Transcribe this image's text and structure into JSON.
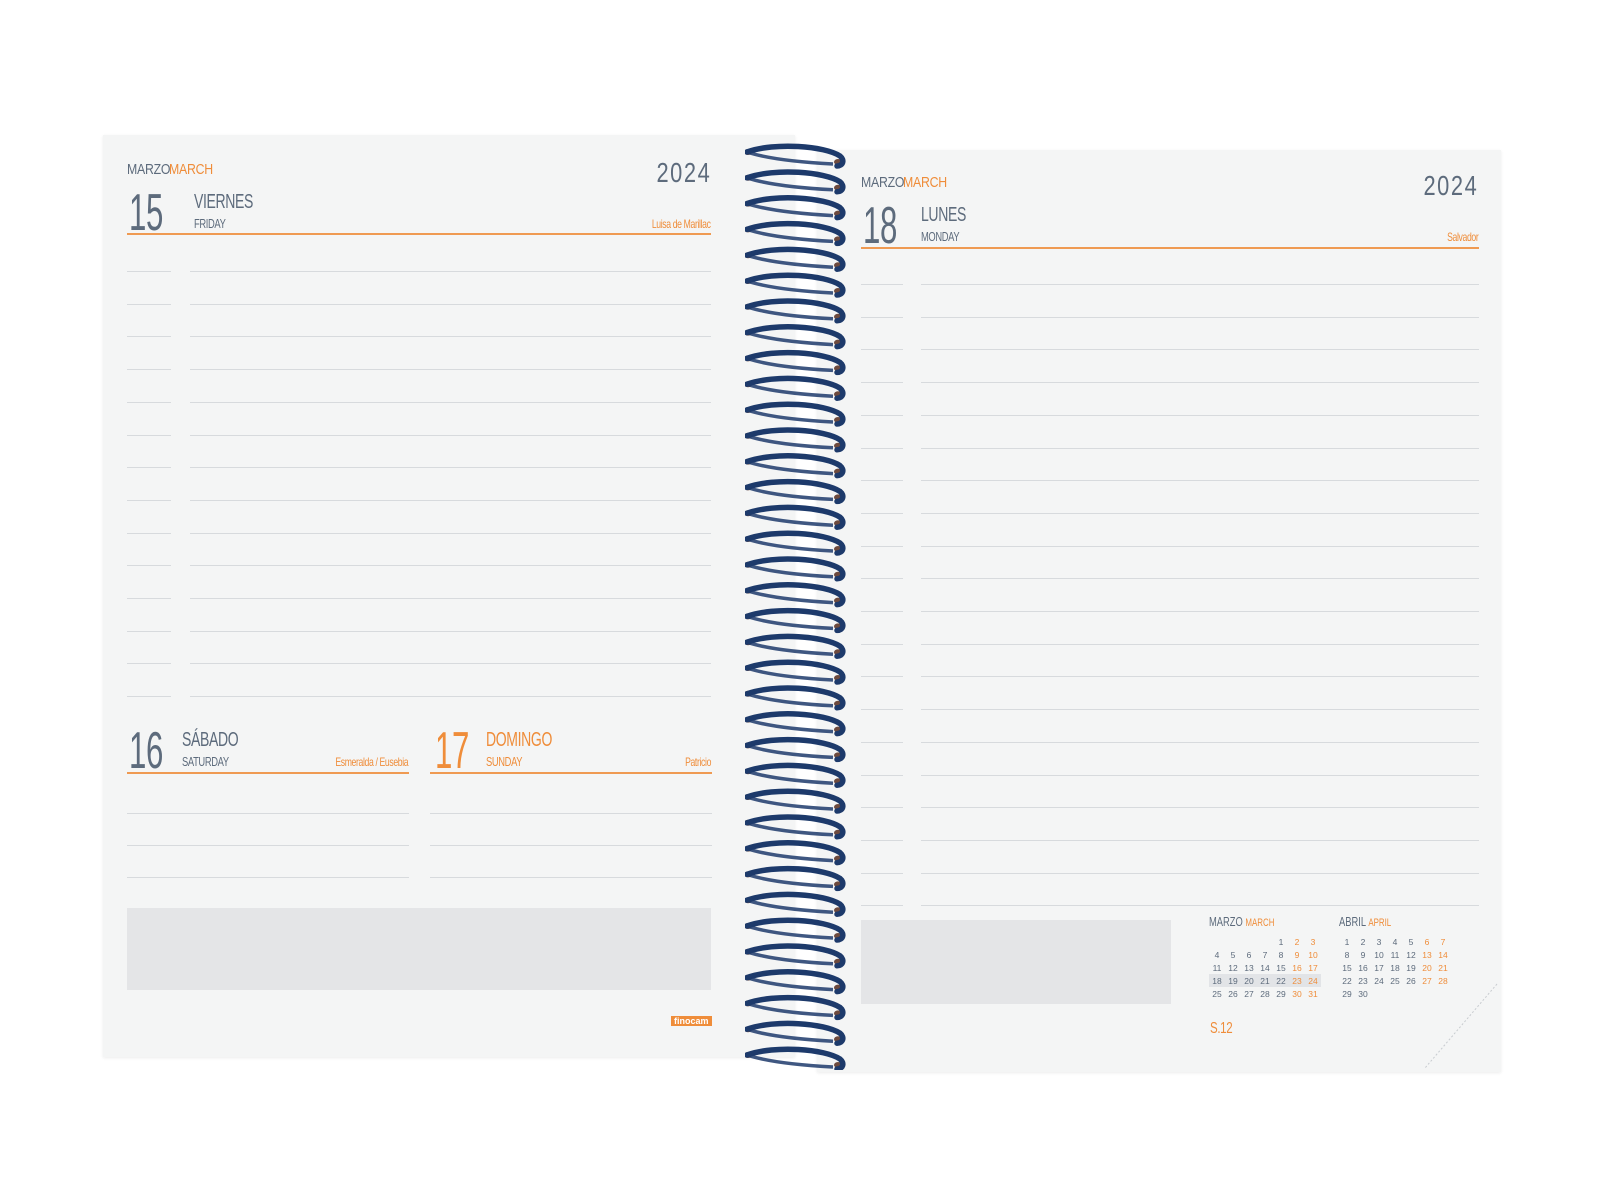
{
  "colors": {
    "accent": "#ef8d3a",
    "text": "#5d6b7c",
    "spiral": "#1d3a6b",
    "page": "#f4f5f5",
    "box": "#e4e5e7"
  },
  "left_page": {
    "month_es": "MARZO",
    "month_en": "MARCH",
    "year": "2024",
    "main_day": {
      "number": "15",
      "name_es": "VIERNES",
      "name_en": "FRIDAY",
      "saint": "Luisa de Marillac"
    },
    "day_sat": {
      "number": "16",
      "name_es": "SÁBADO",
      "name_en": "SATURDAY",
      "saint": "Esmeralda / Eusebia"
    },
    "day_sun": {
      "number": "17",
      "name_es": "DOMINGO",
      "name_en": "SUNDAY",
      "saint": "Patricio"
    },
    "brand": "finocam"
  },
  "right_page": {
    "month_es": "MARZO",
    "month_en": "MARCH",
    "year": "2024",
    "main_day": {
      "number": "18",
      "name_es": "LUNES",
      "name_en": "MONDAY",
      "saint": "Salvador"
    },
    "week": "S.12",
    "mini_calendars": [
      {
        "month_es": "MARZO",
        "month_en": "MARCH",
        "weeks": [
          [
            "",
            "",
            "",
            "",
            "1",
            "2",
            "3"
          ],
          [
            "4",
            "5",
            "6",
            "7",
            "8",
            "9",
            "10"
          ],
          [
            "11",
            "12",
            "13",
            "14",
            "15",
            "16",
            "17"
          ],
          [
            "18",
            "19",
            "20",
            "21",
            "22",
            "23",
            "24"
          ],
          [
            "25",
            "26",
            "27",
            "28",
            "29",
            "30",
            "31"
          ]
        ],
        "highlighted_week": 3
      },
      {
        "month_es": "ABRIL",
        "month_en": "APRIL",
        "weeks": [
          [
            "1",
            "2",
            "3",
            "4",
            "5",
            "6",
            "7"
          ],
          [
            "8",
            "9",
            "10",
            "11",
            "12",
            "13",
            "14"
          ],
          [
            "15",
            "16",
            "17",
            "18",
            "19",
            "20",
            "21"
          ],
          [
            "22",
            "23",
            "24",
            "25",
            "26",
            "27",
            "28"
          ],
          [
            "29",
            "30",
            "",
            "",
            "",
            "",
            ""
          ]
        ],
        "highlighted_week": -1
      }
    ]
  }
}
